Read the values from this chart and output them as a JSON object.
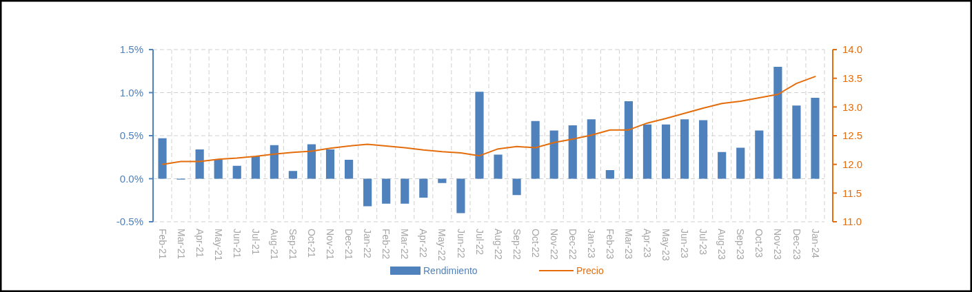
{
  "chart_data": {
    "type": "bar",
    "categories": [
      "Feb-21",
      "Mar-21",
      "Apr-21",
      "May-21",
      "Jun-21",
      "Jul-21",
      "Aug-21",
      "Sep-21",
      "Oct-21",
      "Nov-21",
      "Dec-21",
      "Jan-22",
      "Feb-22",
      "Mar-22",
      "Apr-22",
      "May-22",
      "Jun-22",
      "Jul-22",
      "Aug-22",
      "Sep-22",
      "Oct-22",
      "Nov-22",
      "Dec-22",
      "Jan-23",
      "Feb-23",
      "Mar-23",
      "Apr-23",
      "May-23",
      "Jun-23",
      "Jul-23",
      "Aug-23",
      "Sep-23",
      "Oct-23",
      "Nov-23",
      "Dec-23",
      "Jan-24"
    ],
    "series": [
      {
        "name": "Rendimiento",
        "color": "#4f81bd",
        "values": [
          0.47,
          -0.01,
          0.34,
          0.22,
          0.15,
          0.26,
          0.39,
          0.09,
          0.4,
          0.34,
          0.22,
          -0.32,
          -0.29,
          -0.29,
          -0.22,
          -0.05,
          -0.4,
          1.01,
          0.28,
          -0.19,
          0.67,
          0.56,
          0.62,
          0.69,
          0.1,
          0.9,
          0.63,
          0.63,
          0.69,
          0.68,
          0.31,
          0.36,
          0.56,
          1.3,
          0.85,
          0.94
        ]
      },
      {
        "name": "Precio",
        "type": "line",
        "axis": "y2",
        "color": "#e46c0a",
        "values": [
          12.0,
          12.05,
          12.05,
          12.09,
          12.11,
          12.14,
          12.18,
          12.21,
          12.23,
          12.28,
          12.32,
          12.35,
          12.32,
          12.29,
          12.25,
          12.22,
          12.2,
          12.15,
          12.27,
          12.31,
          12.29,
          12.38,
          12.44,
          12.51,
          12.6,
          12.6,
          12.72,
          12.8,
          12.89,
          12.98,
          13.06,
          13.1,
          13.16,
          13.22,
          13.41,
          13.53
        ]
      }
    ],
    "ylim": [
      -0.5,
      1.5
    ],
    "yticks": [
      {
        "value": -0.5,
        "label": "-0.5%"
      },
      {
        "value": 0,
        "label": "0.0%"
      },
      {
        "value": 0.5,
        "label": "0.5%"
      },
      {
        "value": 1,
        "label": "1.0%"
      },
      {
        "value": 1.5,
        "label": "1.5%"
      }
    ],
    "y2lim": [
      11,
      14
    ],
    "y2ticks": [
      {
        "value": 11,
        "label": "11.0"
      },
      {
        "value": 11.5,
        "label": "11.5"
      },
      {
        "value": 12,
        "label": "12.0"
      },
      {
        "value": 12.5,
        "label": "12.5"
      },
      {
        "value": 13,
        "label": "13.0"
      },
      {
        "value": 13.5,
        "label": "13.5"
      },
      {
        "value": 14,
        "label": "14.0"
      }
    ],
    "grid": true,
    "legend": "bottom",
    "marker": "none",
    "line_style": "solid"
  }
}
